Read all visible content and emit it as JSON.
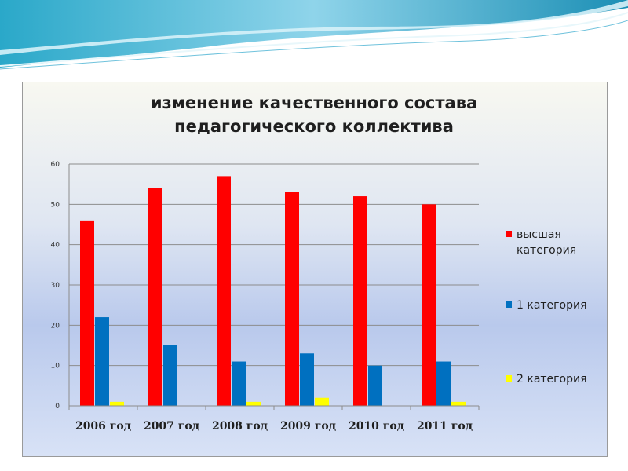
{
  "chart_data": {
    "type": "bar",
    "title_lines": [
      "изменение качественного состава",
      "педагогического коллектива"
    ],
    "categories": [
      "2006 год",
      "2007 год",
      "2008 год",
      "2009 год",
      "2010 год",
      "2011 год"
    ],
    "series": [
      {
        "name": "высшая категория",
        "label_lines": [
          "высшая",
          "категория"
        ],
        "color": "#ff0000",
        "values": [
          46,
          54,
          57,
          53,
          52,
          50
        ]
      },
      {
        "name": "1 категория",
        "label_lines": [
          "1 категория"
        ],
        "color": "#0070c0",
        "values": [
          22,
          15,
          11,
          13,
          10,
          11
        ]
      },
      {
        "name": "2 категория",
        "label_lines": [
          "2 категория"
        ],
        "color": "#ffff00",
        "values": [
          1,
          0,
          1,
          2,
          0,
          1
        ]
      }
    ],
    "yticks": [
      "0",
      "10",
      "20",
      "30",
      "40",
      "50",
      "60"
    ],
    "ylim": [
      0,
      60
    ],
    "grid": true,
    "legend": "right"
  }
}
